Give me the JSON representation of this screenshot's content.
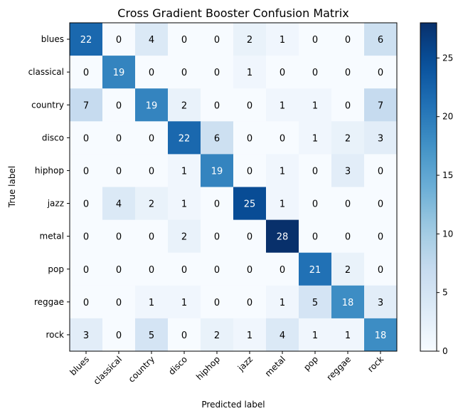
{
  "chart_data": {
    "type": "heatmap",
    "title": "Cross Gradient Booster Confusion Matrix",
    "xlabel": "Predicted label",
    "ylabel": "True label",
    "x_categories": [
      "blues",
      "classical",
      "country",
      "disco",
      "hiphop",
      "jazz",
      "metal",
      "pop",
      "reggae",
      "rock"
    ],
    "y_categories": [
      "blues",
      "classical",
      "country",
      "disco",
      "hiphop",
      "jazz",
      "metal",
      "pop",
      "reggae",
      "rock"
    ],
    "matrix": [
      [
        22,
        0,
        4,
        0,
        0,
        2,
        1,
        0,
        0,
        6
      ],
      [
        0,
        19,
        0,
        0,
        0,
        1,
        0,
        0,
        0,
        0
      ],
      [
        7,
        0,
        19,
        2,
        0,
        0,
        1,
        1,
        0,
        7
      ],
      [
        0,
        0,
        0,
        22,
        6,
        0,
        0,
        1,
        2,
        3
      ],
      [
        0,
        0,
        0,
        1,
        19,
        0,
        1,
        0,
        3,
        0
      ],
      [
        0,
        4,
        2,
        1,
        0,
        25,
        1,
        0,
        0,
        0
      ],
      [
        0,
        0,
        0,
        2,
        0,
        0,
        28,
        0,
        0,
        0
      ],
      [
        0,
        0,
        0,
        0,
        0,
        0,
        0,
        21,
        2,
        0
      ],
      [
        0,
        0,
        1,
        1,
        0,
        0,
        1,
        5,
        18,
        3
      ],
      [
        3,
        0,
        5,
        0,
        2,
        1,
        4,
        1,
        1,
        18
      ]
    ],
    "colormap": "Blues",
    "vmin": 0,
    "vmax": 28,
    "colorbar_ticks": [
      "0",
      "5",
      "10",
      "15",
      "20",
      "25"
    ],
    "grid": false
  }
}
